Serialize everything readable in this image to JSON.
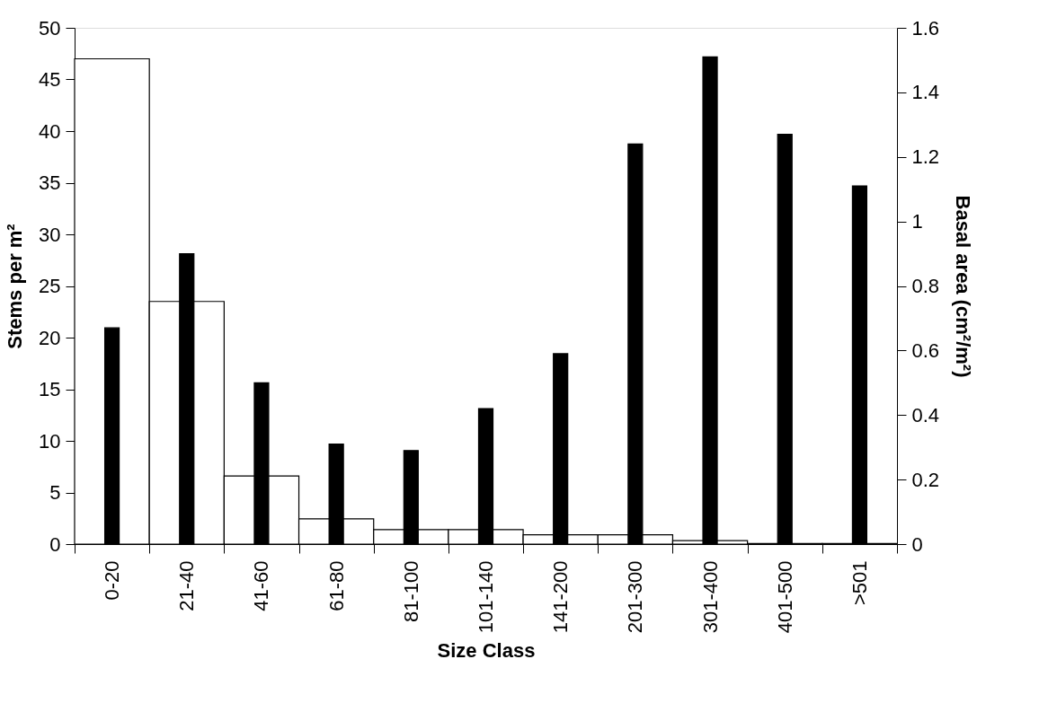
{
  "chart_data": {
    "type": "bar",
    "xlabel": "Size Class",
    "ylabel": "Stems per m²",
    "y2label": "Basal area (cm²/m²)",
    "categories": [
      "0-20",
      "21-40",
      "41-60",
      "61-80",
      "81-100",
      "101-140",
      "141-200",
      "201-300",
      "301-400",
      "401-500",
      ">501"
    ],
    "series": [
      {
        "color": "#ffffff",
        "values": [
          47,
          23.5,
          6.6,
          2.45,
          1.4,
          1.4,
          0.9,
          0.9,
          0.33,
          0.05,
          0.05
        ]
      },
      {
        "color": "#000000",
        "axis": "y2",
        "values": [
          0.67,
          0.9,
          0.5,
          0.31,
          0.29,
          0.42,
          0.59,
          1.24,
          1.51,
          1.27,
          1.11
        ]
      }
    ],
    "ylim": [
      0,
      50
    ],
    "yticks": [
      0,
      5,
      10,
      15,
      20,
      25,
      30,
      35,
      40,
      45,
      50
    ],
    "y2lim": [
      0,
      1.6
    ],
    "y2ticks": [
      0,
      0.2,
      0.4,
      0.6,
      0.8,
      1,
      1.2,
      1.4,
      1.6
    ],
    "grid": false
  }
}
